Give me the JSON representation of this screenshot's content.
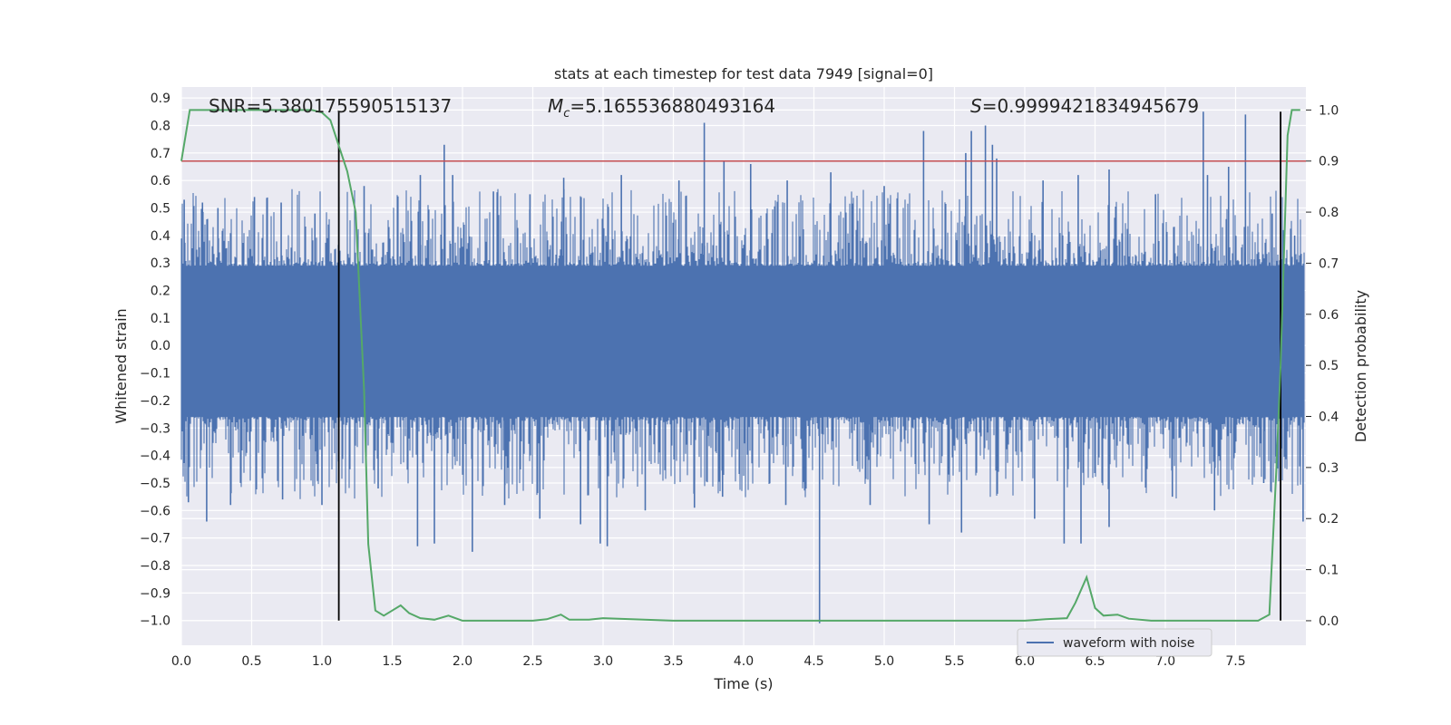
{
  "chart_data": {
    "type": "line",
    "title": "stats at each timestep for test data 7949 [signal=0]",
    "xlabel": "Time (s)",
    "ylabel": "Whitened strain",
    "ylabel_right": "Detection probability",
    "xlim": [
      0.0,
      8.0
    ],
    "ylim_left": [
      -1.09,
      0.94
    ],
    "ylim_right": [
      -0.048,
      1.045
    ],
    "x_ticks": [
      "0.0",
      "0.5",
      "1.0",
      "1.5",
      "2.0",
      "2.5",
      "3.0",
      "3.5",
      "4.0",
      "4.5",
      "5.0",
      "5.5",
      "6.0",
      "6.5",
      "7.0",
      "7.5"
    ],
    "y_left_ticks": [
      "0.9",
      "0.8",
      "0.7",
      "0.6",
      "0.5",
      "0.4",
      "0.3",
      "0.2",
      "0.1",
      "0.0",
      "-0.1",
      "-0.2",
      "-0.3",
      "-0.4",
      "-0.5",
      "-0.6",
      "-0.7",
      "-0.8",
      "-0.9",
      "-1.0"
    ],
    "y_right_ticks": [
      "1.0",
      "0.9",
      "0.8",
      "0.7",
      "0.6",
      "0.5",
      "0.4",
      "0.3",
      "0.2",
      "0.1",
      "0.0"
    ],
    "grid": true,
    "annotations": {
      "snr": "SNR=5.380175590515137",
      "mc_symbol": "M",
      "mc_sub": "c",
      "mc_value": "=5.165536880493164",
      "s_symbol": "S",
      "s_value": "=0.9999421834945679"
    },
    "threshold": {
      "axis": "right",
      "y": 0.9,
      "color": "#c44e52"
    },
    "vertical_markers": {
      "x": [
        1.12,
        7.82
      ],
      "y_range_left": [
        -1.0,
        0.85
      ],
      "color": "#000000"
    },
    "legend": {
      "location": "lower-right",
      "entries": [
        "waveform with noise"
      ]
    },
    "waveform": {
      "name": "waveform with noise",
      "color": "#4c72b0",
      "dense_band_approx": [
        -0.26,
        0.29
      ],
      "positive_peaks": [
        [
          0.02,
          0.53
        ],
        [
          0.15,
          0.52
        ],
        [
          0.26,
          0.5
        ],
        [
          0.52,
          0.54
        ],
        [
          0.71,
          0.52
        ],
        [
          0.95,
          0.48
        ],
        [
          1.3,
          0.58
        ],
        [
          1.7,
          0.62
        ],
        [
          1.87,
          0.73
        ],
        [
          1.93,
          0.62
        ],
        [
          2.22,
          0.56
        ],
        [
          2.48,
          0.55
        ],
        [
          2.72,
          0.61
        ],
        [
          3.13,
          0.62
        ],
        [
          3.54,
          0.6
        ],
        [
          3.72,
          0.81
        ],
        [
          3.86,
          0.67
        ],
        [
          4.05,
          0.66
        ],
        [
          4.31,
          0.6
        ],
        [
          4.62,
          0.63
        ],
        [
          5.0,
          0.58
        ],
        [
          5.28,
          0.78
        ],
        [
          5.58,
          0.7
        ],
        [
          5.62,
          0.78
        ],
        [
          5.72,
          0.8
        ],
        [
          5.77,
          0.73
        ],
        [
          5.8,
          0.68
        ],
        [
          6.13,
          0.6
        ],
        [
          6.38,
          0.62
        ],
        [
          6.6,
          0.64
        ],
        [
          6.93,
          0.55
        ],
        [
          7.27,
          0.85
        ],
        [
          7.3,
          0.62
        ],
        [
          7.45,
          0.65
        ],
        [
          7.57,
          0.84
        ],
        [
          7.76,
          0.48
        ],
        [
          7.92,
          0.4
        ]
      ],
      "negative_peaks": [
        [
          0.05,
          -0.57
        ],
        [
          0.18,
          -0.64
        ],
        [
          0.35,
          -0.58
        ],
        [
          0.72,
          -0.56
        ],
        [
          1.0,
          -0.58
        ],
        [
          1.4,
          -0.52
        ],
        [
          1.68,
          -0.73
        ],
        [
          1.8,
          -0.72
        ],
        [
          2.07,
          -0.75
        ],
        [
          2.3,
          -0.58
        ],
        [
          2.55,
          -0.63
        ],
        [
          2.84,
          -0.65
        ],
        [
          2.98,
          -0.72
        ],
        [
          3.03,
          -0.73
        ],
        [
          3.3,
          -0.6
        ],
        [
          3.65,
          -0.59
        ],
        [
          3.85,
          -0.55
        ],
        [
          4.3,
          -0.58
        ],
        [
          4.54,
          -1.01
        ],
        [
          4.9,
          -0.58
        ],
        [
          5.32,
          -0.65
        ],
        [
          5.55,
          -0.68
        ],
        [
          6.07,
          -0.63
        ],
        [
          6.28,
          -0.72
        ],
        [
          6.4,
          -0.72
        ],
        [
          6.6,
          -0.66
        ],
        [
          7.05,
          -0.55
        ],
        [
          7.35,
          -0.6
        ],
        [
          7.7,
          -0.5
        ],
        [
          7.98,
          -0.64
        ]
      ]
    },
    "series": [
      {
        "name": "Detection probability",
        "axis": "right",
        "color": "#55a868",
        "points": [
          [
            0.0,
            0.9
          ],
          [
            0.06,
            1.0
          ],
          [
            0.2,
            1.0
          ],
          [
            0.4,
            1.0
          ],
          [
            0.6,
            1.0
          ],
          [
            0.8,
            1.0
          ],
          [
            0.93,
            1.0
          ],
          [
            1.0,
            0.995
          ],
          [
            1.06,
            0.98
          ],
          [
            1.12,
            0.93
          ],
          [
            1.18,
            0.88
          ],
          [
            1.24,
            0.8
          ],
          [
            1.3,
            0.45
          ],
          [
            1.33,
            0.15
          ],
          [
            1.38,
            0.02
          ],
          [
            1.44,
            0.01
          ],
          [
            1.5,
            0.02
          ],
          [
            1.56,
            0.03
          ],
          [
            1.62,
            0.015
          ],
          [
            1.7,
            0.005
          ],
          [
            1.8,
            0.002
          ],
          [
            1.9,
            0.01
          ],
          [
            2.0,
            0.0
          ],
          [
            2.2,
            0.0
          ],
          [
            2.5,
            0.0
          ],
          [
            2.6,
            0.003
          ],
          [
            2.7,
            0.012
          ],
          [
            2.76,
            0.002
          ],
          [
            2.9,
            0.002
          ],
          [
            3.0,
            0.005
          ],
          [
            3.2,
            0.003
          ],
          [
            3.5,
            0.0
          ],
          [
            3.8,
            0.0
          ],
          [
            4.2,
            0.0
          ],
          [
            4.6,
            0.0
          ],
          [
            5.0,
            0.0
          ],
          [
            5.5,
            0.0
          ],
          [
            6.0,
            0.0
          ],
          [
            6.15,
            0.003
          ],
          [
            6.3,
            0.005
          ],
          [
            6.36,
            0.035
          ],
          [
            6.44,
            0.085
          ],
          [
            6.5,
            0.025
          ],
          [
            6.56,
            0.01
          ],
          [
            6.66,
            0.012
          ],
          [
            6.74,
            0.004
          ],
          [
            6.9,
            0.0
          ],
          [
            7.2,
            0.0
          ],
          [
            7.5,
            0.0
          ],
          [
            7.66,
            0.0
          ],
          [
            7.74,
            0.012
          ],
          [
            7.79,
            0.3
          ],
          [
            7.82,
            0.5
          ],
          [
            7.87,
            0.95
          ],
          [
            7.9,
            1.0
          ],
          [
            7.96,
            1.0
          ]
        ]
      }
    ]
  }
}
